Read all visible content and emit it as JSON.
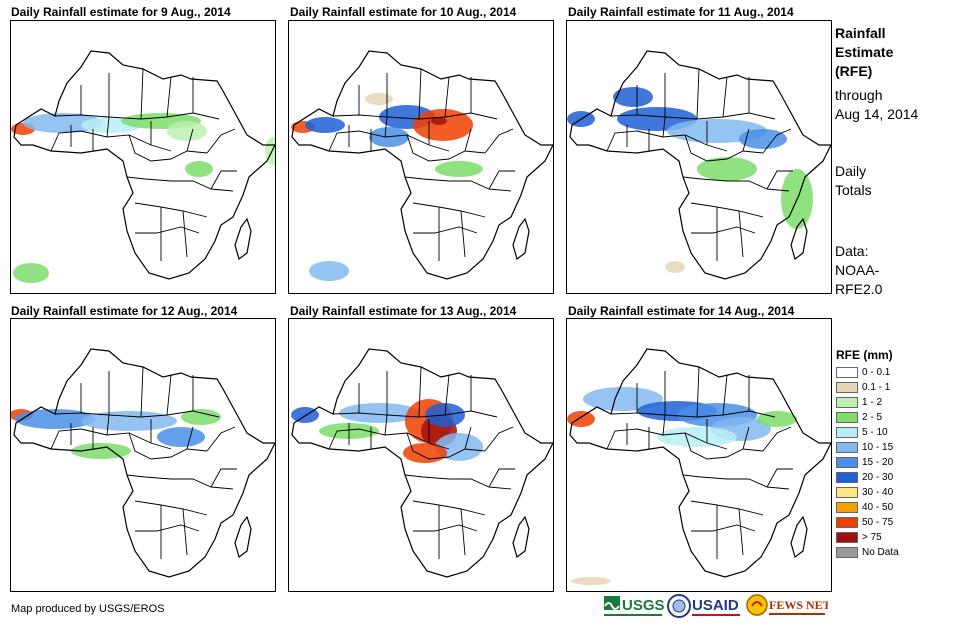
{
  "panels": [
    {
      "title": "Daily Rainfall estimate for 9 Aug., 2014"
    },
    {
      "title": "Daily Rainfall estimate for 10 Aug., 2014"
    },
    {
      "title": "Daily Rainfall estimate for 11 Aug., 2014"
    },
    {
      "title": "Daily Rainfall estimate for 12 Aug., 2014"
    },
    {
      "title": "Daily Rainfall estimate for 13 Aug., 2014"
    },
    {
      "title": "Daily Rainfall estimate for 14 Aug., 2014"
    }
  ],
  "sidebar": {
    "heading": [
      "Rainfall",
      "Estimate",
      "(RFE)"
    ],
    "through": [
      "through",
      "Aug 14, 2014"
    ],
    "totals": [
      "Daily",
      "Totals"
    ],
    "source": [
      "Data:",
      "NOAA-",
      "RFE2.0"
    ]
  },
  "legend": {
    "title": "RFE (mm)",
    "items": [
      {
        "label": "0 - 0.1",
        "color": "#ffffff"
      },
      {
        "label": "0.1 - 1",
        "color": "#e8d5b5"
      },
      {
        "label": "1 - 2",
        "color": "#bdf0b0"
      },
      {
        "label": "2 - 5",
        "color": "#7ddc6a"
      },
      {
        "label": "5 - 10",
        "color": "#b8eef5"
      },
      {
        "label": "10 - 15",
        "color": "#82b8f0"
      },
      {
        "label": "15 - 20",
        "color": "#4a8fe6"
      },
      {
        "label": "20 - 30",
        "color": "#1f5fd6"
      },
      {
        "label": "30 - 40",
        "color": "#ffe680"
      },
      {
        "label": "40 - 50",
        "color": "#f5a300"
      },
      {
        "label": "50 - 75",
        "color": "#f04000"
      },
      {
        "label": "> 75",
        "color": "#a01010"
      },
      {
        "label": "No Data",
        "color": "#9a9a9a"
      }
    ]
  },
  "footer": {
    "credit": "Map produced by USGS/EROS",
    "logos": [
      "USGS",
      "USAID",
      "FEWS NET"
    ]
  }
}
